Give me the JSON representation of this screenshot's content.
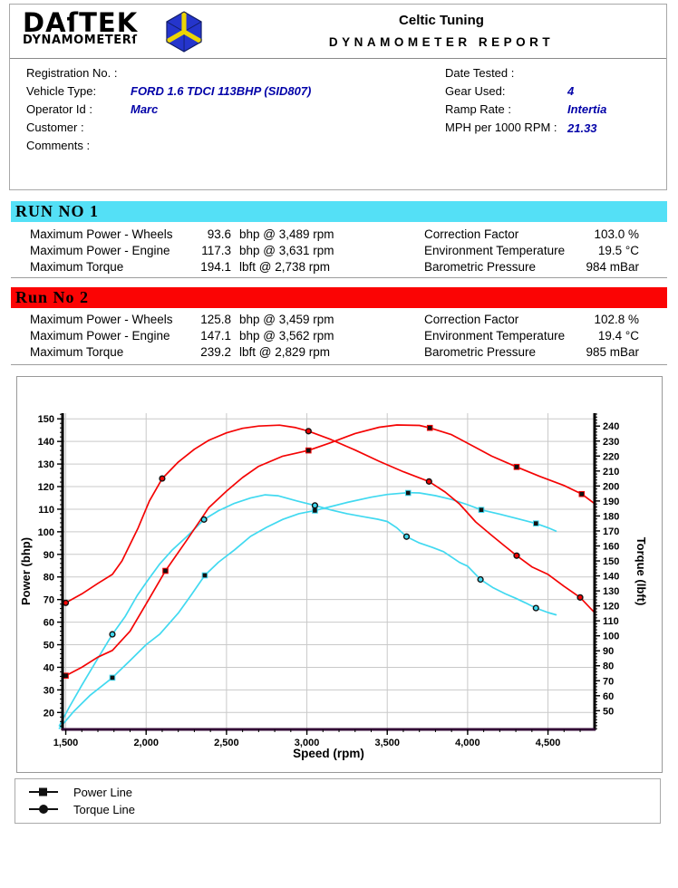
{
  "header": {
    "logo_line1": "DAſTEK",
    "logo_line2": "DYNAMOMETERſ",
    "company": "Celtic Tuning",
    "report_title": "DYNAMOMETER REPORT"
  },
  "info": {
    "left": [
      {
        "label": "Registration No. :",
        "value": ""
      },
      {
        "label": "Vehicle Type:",
        "value": "FORD 1.6 TDCI 113BHP (SID807)"
      },
      {
        "label": "Operator Id :",
        "value": "Marc"
      },
      {
        "label": "Customer :",
        "value": ""
      },
      {
        "label": "Comments :",
        "value": ""
      }
    ],
    "right": [
      {
        "label": "Date Tested :",
        "value": ""
      },
      {
        "label": "Gear Used:",
        "value": "4"
      },
      {
        "label": "Ramp Rate :",
        "value": "Intertia"
      },
      {
        "label": "MPH per 1000 RPM :",
        "value": "21.33"
      }
    ],
    "value_color": "#0202a8"
  },
  "runs": [
    {
      "title": "RUN NO 1",
      "banner_color": "#54e0f6",
      "stats": [
        {
          "label": "Maximum Power - Wheels",
          "value": "93.6",
          "unit": "bhp @ 3,489 rpm"
        },
        {
          "label": "Maximum Power - Engine",
          "value": "117.3",
          "unit": "bhp @ 3,631 rpm"
        },
        {
          "label": "Maximum Torque",
          "value": "194.1",
          "unit": "lbft @ 2,738 rpm"
        }
      ],
      "env": [
        {
          "label": "Correction Factor",
          "value": "103.0 %"
        },
        {
          "label": "Environment Temperature",
          "value": "19.5 °C"
        },
        {
          "label": "Barometric Pressure",
          "value": "984 mBar"
        }
      ]
    },
    {
      "title": "Run No 2",
      "banner_color": "#fb0404",
      "stats": [
        {
          "label": "Maximum Power - Wheels",
          "value": "125.8",
          "unit": "bhp @ 3,459 rpm"
        },
        {
          "label": "Maximum Power - Engine",
          "value": "147.1",
          "unit": "bhp @ 3,562 rpm"
        },
        {
          "label": "Maximum Torque",
          "value": "239.2",
          "unit": "lbft @ 2,829 rpm"
        }
      ],
      "env": [
        {
          "label": "Correction Factor",
          "value": "102.8 %"
        },
        {
          "label": "Environment Temperature",
          "value": "19.4 °C"
        },
        {
          "label": "Barometric Pressure",
          "value": "985 mBar"
        }
      ]
    }
  ],
  "legend": {
    "items": [
      {
        "label": "Power Line",
        "marker": "square"
      },
      {
        "label": "Torque Line",
        "marker": "circle"
      }
    ],
    "marker_color": "#111111"
  },
  "chart_data": {
    "type": "line",
    "xlabel": "Speed (rpm)",
    "ylabel_left": "Power (bhp)",
    "ylabel_right": "Torque (lbft)",
    "xlim": [
      1480,
      4790
    ],
    "power_ylim": [
      12.5,
      152.5
    ],
    "torque_ylim": [
      37.5,
      248.6
    ],
    "x_ticks": [
      1500,
      2000,
      2500,
      3000,
      3500,
      4000,
      4500
    ],
    "x_tick_labels": [
      "1,500",
      "2,000",
      "2,500",
      "3,000",
      "3,500",
      "4,000",
      "4,500"
    ],
    "x_minor_step": 100,
    "power_ticks": [
      20,
      30,
      40,
      50,
      60,
      70,
      80,
      90,
      100,
      110,
      120,
      130,
      140,
      150
    ],
    "torque_ticks": [
      50,
      60,
      70,
      80,
      90,
      100,
      110,
      120,
      130,
      140,
      150,
      160,
      170,
      180,
      190,
      200,
      210,
      220,
      230,
      240
    ],
    "y_minor_step": 2,
    "grid": true,
    "grid_color": "#c9c9c9",
    "axis_color": "#000000",
    "baseline_color": "#330a36",
    "legend_position": "bottom-box",
    "series": [
      {
        "name": "Run 1 Power",
        "run": 1,
        "axis": "power",
        "unit": "bhp",
        "color": "#41d9f0",
        "marker": "square",
        "points": [
          [
            1460,
            13
          ],
          [
            1550,
            20.5
          ],
          [
            1650,
            27.5
          ],
          [
            1790,
            35.4
          ],
          [
            1900,
            43
          ],
          [
            2000,
            50
          ],
          [
            2085,
            54.7
          ],
          [
            2200,
            64
          ],
          [
            2280,
            72
          ],
          [
            2365,
            80.7
          ],
          [
            2450,
            86.5
          ],
          [
            2550,
            92
          ],
          [
            2650,
            98
          ],
          [
            2750,
            102
          ],
          [
            2850,
            105.5
          ],
          [
            2950,
            108
          ],
          [
            3050,
            109.4
          ],
          [
            3150,
            111.2
          ],
          [
            3250,
            113
          ],
          [
            3400,
            115.3
          ],
          [
            3500,
            116.5
          ],
          [
            3630,
            117.3
          ],
          [
            3700,
            117.2
          ],
          [
            3800,
            116
          ],
          [
            3900,
            114.3
          ],
          [
            4000,
            112
          ],
          [
            4085,
            109.7
          ],
          [
            4200,
            107.8
          ],
          [
            4300,
            106
          ],
          [
            4425,
            103.7
          ],
          [
            4500,
            101.8
          ],
          [
            4550,
            100.3
          ]
        ],
        "markers": [
          [
            1790,
            35.4
          ],
          [
            2365,
            80.7
          ],
          [
            3050,
            109.4
          ],
          [
            3630,
            117.2
          ],
          [
            4085,
            109.7
          ],
          [
            4425,
            103.7
          ]
        ]
      },
      {
        "name": "Run 1 Torque",
        "run": 1,
        "axis": "torque",
        "unit": "lbft",
        "color": "#41d9f0",
        "marker": "circle",
        "points": [
          [
            1460,
            40
          ],
          [
            1520,
            52
          ],
          [
            1600,
            67
          ],
          [
            1700,
            85
          ],
          [
            1790,
            101
          ],
          [
            1870,
            113
          ],
          [
            1945,
            127
          ],
          [
            2010,
            137
          ],
          [
            2085,
            148
          ],
          [
            2160,
            157
          ],
          [
            2250,
            166
          ],
          [
            2360,
            177.6
          ],
          [
            2450,
            183.5
          ],
          [
            2550,
            188.5
          ],
          [
            2650,
            192
          ],
          [
            2740,
            194.1
          ],
          [
            2820,
            193.5
          ],
          [
            2940,
            190
          ],
          [
            3050,
            187
          ],
          [
            3150,
            184
          ],
          [
            3250,
            181.5
          ],
          [
            3350,
            179.5
          ],
          [
            3440,
            177.8
          ],
          [
            3500,
            176.3
          ],
          [
            3560,
            172
          ],
          [
            3620,
            166.2
          ],
          [
            3700,
            162
          ],
          [
            3780,
            159
          ],
          [
            3850,
            156.2
          ],
          [
            3950,
            149
          ],
          [
            4000,
            146.5
          ],
          [
            4080,
            137.6
          ],
          [
            4160,
            132
          ],
          [
            4235,
            128
          ],
          [
            4300,
            125
          ],
          [
            4360,
            122
          ],
          [
            4425,
            118.5
          ],
          [
            4500,
            115.5
          ],
          [
            4550,
            114
          ]
        ],
        "markers": [
          [
            1790,
            101
          ],
          [
            2360,
            177.6
          ],
          [
            3050,
            187
          ],
          [
            3620,
            166.2
          ],
          [
            4080,
            137.6
          ],
          [
            4425,
            118.5
          ]
        ]
      },
      {
        "name": "Run 2 Power",
        "run": 2,
        "axis": "power",
        "unit": "bhp",
        "color": "#f40404",
        "marker": "square",
        "points": [
          [
            1500,
            36.3
          ],
          [
            1600,
            40
          ],
          [
            1700,
            44.5
          ],
          [
            1790,
            47.5
          ],
          [
            1900,
            56
          ],
          [
            2000,
            68
          ],
          [
            2120,
            82.7
          ],
          [
            2250,
            96
          ],
          [
            2390,
            110.7
          ],
          [
            2500,
            118
          ],
          [
            2600,
            124
          ],
          [
            2700,
            129
          ],
          [
            2850,
            133.5
          ],
          [
            3010,
            136
          ],
          [
            3150,
            139.5
          ],
          [
            3300,
            143.5
          ],
          [
            3450,
            146.3
          ],
          [
            3560,
            147.3
          ],
          [
            3700,
            147.1
          ],
          [
            3765,
            146
          ],
          [
            3900,
            143
          ],
          [
            4050,
            137.3
          ],
          [
            4150,
            133.5
          ],
          [
            4305,
            128.7
          ],
          [
            4450,
            124.5
          ],
          [
            4600,
            120.5
          ],
          [
            4710,
            116.7
          ],
          [
            4785,
            112.7
          ]
        ],
        "markers": [
          [
            1500,
            36.3
          ],
          [
            2120,
            82.7
          ],
          [
            3010,
            136
          ],
          [
            3765,
            146
          ],
          [
            4305,
            128.7
          ],
          [
            4710,
            116.7
          ]
        ]
      },
      {
        "name": "Run 2 Torque",
        "run": 2,
        "axis": "torque",
        "unit": "lbft",
        "color": "#f40404",
        "marker": "circle",
        "points": [
          [
            1500,
            122
          ],
          [
            1600,
            128
          ],
          [
            1700,
            135
          ],
          [
            1790,
            141
          ],
          [
            1850,
            150
          ],
          [
            1950,
            172
          ],
          [
            2020,
            190
          ],
          [
            2100,
            205
          ],
          [
            2200,
            216
          ],
          [
            2300,
            224.5
          ],
          [
            2390,
            230.5
          ],
          [
            2500,
            235.5
          ],
          [
            2600,
            238.5
          ],
          [
            2700,
            240
          ],
          [
            2830,
            240.6
          ],
          [
            2930,
            239
          ],
          [
            3010,
            236.6
          ],
          [
            3150,
            231
          ],
          [
            3300,
            224
          ],
          [
            3450,
            216.5
          ],
          [
            3600,
            209.5
          ],
          [
            3760,
            203
          ],
          [
            3860,
            196
          ],
          [
            3950,
            188
          ],
          [
            4050,
            176
          ],
          [
            4150,
            167
          ],
          [
            4230,
            160
          ],
          [
            4305,
            153.5
          ],
          [
            4400,
            146
          ],
          [
            4500,
            141
          ],
          [
            4600,
            133
          ],
          [
            4700,
            125.6
          ],
          [
            4785,
            116
          ]
        ],
        "markers": [
          [
            1500,
            122
          ],
          [
            2100,
            205
          ],
          [
            3010,
            236.6
          ],
          [
            3760,
            203
          ],
          [
            4305,
            153.5
          ],
          [
            4700,
            125.6
          ]
        ]
      }
    ]
  }
}
